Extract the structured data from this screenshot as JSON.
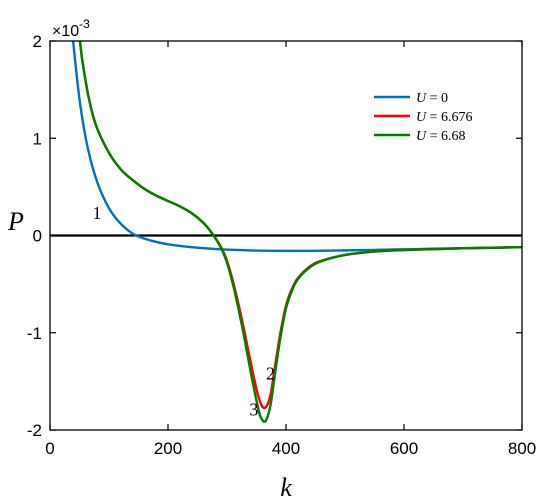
{
  "chart_data": {
    "type": "line",
    "xlabel": "k",
    "ylabel": "P",
    "exponent_label": "×10-3",
    "xlim": [
      0,
      800
    ],
    "ylim": [
      -2,
      2
    ],
    "xticks": [
      0,
      200,
      400,
      600,
      800
    ],
    "yticks": [
      -2,
      -1,
      0,
      1,
      2
    ],
    "xtick_labels": [
      "0",
      "200",
      "400",
      "600",
      "800"
    ],
    "ytick_labels": [
      "-2",
      "-1",
      "0",
      "1",
      "2"
    ],
    "grid": false,
    "legend_position": "top-right",
    "reference_line_y": 0,
    "reference_line_color": "#000000",
    "series": [
      {
        "name": "U = 0",
        "legend_var": "U",
        "legend_val": "= 0",
        "color": "#0072BD",
        "x": [
          30,
          40,
          50,
          60,
          70,
          80,
          90,
          100,
          110,
          120,
          130,
          140,
          150,
          170,
          200,
          250,
          300,
          350,
          400,
          450,
          500,
          550,
          600,
          650,
          700,
          750,
          800
        ],
        "y": [
          2.6,
          1.95,
          1.4,
          1.02,
          0.75,
          0.55,
          0.4,
          0.28,
          0.19,
          0.12,
          0.065,
          0.02,
          -0.01,
          -0.05,
          -0.09,
          -0.125,
          -0.145,
          -0.155,
          -0.158,
          -0.157,
          -0.153,
          -0.148,
          -0.142,
          -0.136,
          -0.13,
          -0.125,
          -0.12
        ]
      },
      {
        "name": "U = 6.676",
        "legend_var": "U",
        "legend_val": "= 6.676",
        "color": "#FF0000",
        "x": [
          40,
          50,
          60,
          70,
          80,
          100,
          120,
          140,
          160,
          180,
          200,
          220,
          240,
          260,
          275,
          290,
          300,
          310,
          320,
          330,
          340,
          350,
          355,
          360,
          365,
          370,
          375,
          380,
          390,
          400,
          410,
          420,
          440,
          460,
          500,
          550,
          600,
          650,
          700,
          750,
          800
        ],
        "y": [
          3.0,
          2.05,
          1.6,
          1.3,
          1.1,
          0.85,
          0.68,
          0.57,
          0.48,
          0.41,
          0.355,
          0.3,
          0.23,
          0.13,
          0.02,
          -0.12,
          -0.26,
          -0.47,
          -0.72,
          -1.0,
          -1.3,
          -1.58,
          -1.69,
          -1.76,
          -1.77,
          -1.72,
          -1.6,
          -1.4,
          -1.02,
          -0.72,
          -0.55,
          -0.44,
          -0.32,
          -0.26,
          -0.2,
          -0.165,
          -0.15,
          -0.14,
          -0.132,
          -0.126,
          -0.12
        ]
      },
      {
        "name": "U = 6.68",
        "legend_var": "U",
        "legend_val": "= 6.68",
        "color": "#008000",
        "x": [
          40,
          50,
          60,
          70,
          80,
          100,
          120,
          140,
          160,
          180,
          200,
          220,
          240,
          260,
          275,
          290,
          300,
          310,
          320,
          330,
          340,
          350,
          355,
          360,
          365,
          370,
          375,
          380,
          390,
          400,
          410,
          420,
          440,
          460,
          500,
          550,
          600,
          650,
          700,
          750,
          800
        ],
        "y": [
          3.0,
          2.05,
          1.6,
          1.3,
          1.1,
          0.85,
          0.68,
          0.57,
          0.48,
          0.41,
          0.355,
          0.3,
          0.23,
          0.13,
          0.02,
          -0.13,
          -0.28,
          -0.5,
          -0.77,
          -1.07,
          -1.4,
          -1.7,
          -1.83,
          -1.9,
          -1.91,
          -1.84,
          -1.7,
          -1.48,
          -1.07,
          -0.75,
          -0.57,
          -0.45,
          -0.33,
          -0.265,
          -0.2,
          -0.165,
          -0.15,
          -0.14,
          -0.132,
          -0.126,
          -0.12
        ]
      }
    ],
    "annotations": [
      {
        "text": "1",
        "x": 72,
        "y": 0.17
      },
      {
        "text": "2",
        "x": 366,
        "y": -1.48
      },
      {
        "text": "3",
        "x": 338,
        "y": -1.85
      }
    ]
  }
}
